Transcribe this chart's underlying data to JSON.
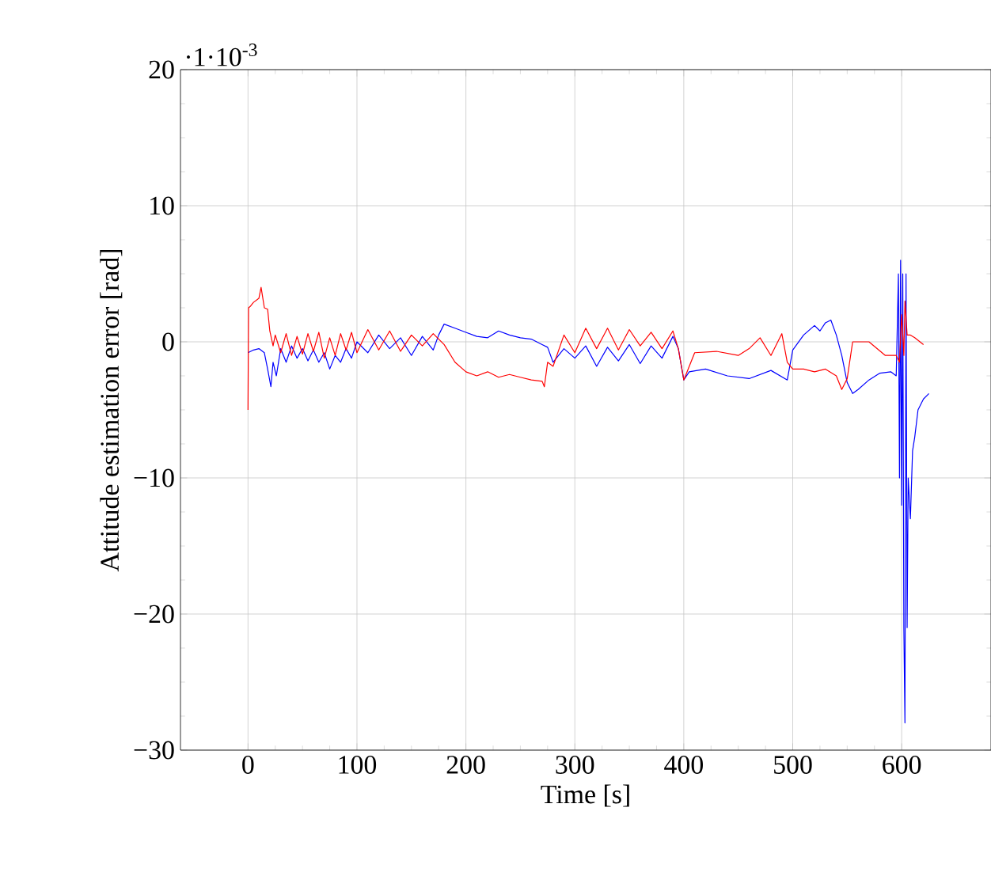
{
  "chart_data": {
    "type": "line",
    "xlabel": "Time [s]",
    "ylabel": "Attitude estimation error [rad]",
    "annotations": [
      "·1·10$^{-3}$"
    ],
    "xlim": [
      -62,
      682
    ],
    "ylim": [
      -30,
      20
    ],
    "xticks": [
      0,
      100,
      200,
      300,
      400,
      500,
      600
    ],
    "yticks": [
      {
        "value": -30,
        "label": "−30"
      },
      {
        "value": -20,
        "label": "−20"
      },
      {
        "value": -10,
        "label": "−10"
      },
      0,
      10,
      20
    ],
    "grid": true,
    "marker": "none",
    "line_style": "solid",
    "series": [
      {
        "color": "#0000ff",
        "x": [
          0,
          5,
          10,
          15,
          18,
          21,
          23,
          26,
          30,
          35,
          40,
          45,
          50,
          55,
          60,
          65,
          70,
          75,
          80,
          85,
          90,
          95,
          100,
          110,
          120,
          130,
          140,
          150,
          160,
          170,
          175,
          180,
          190,
          200,
          210,
          220,
          230,
          240,
          250,
          260,
          270,
          275,
          280,
          290,
          300,
          310,
          320,
          330,
          340,
          350,
          360,
          370,
          380,
          390,
          395,
          400,
          405,
          420,
          440,
          460,
          480,
          495,
          500,
          510,
          520,
          525,
          530,
          535,
          540,
          545,
          550,
          555,
          560,
          570,
          580,
          590,
          595,
          597,
          598,
          599,
          600,
          601,
          602,
          603,
          604,
          605,
          606,
          608,
          610,
          612,
          615,
          620,
          625
        ],
        "values": [
          -0.8,
          -0.6,
          -0.5,
          -0.8,
          -2,
          -3.3,
          -1.5,
          -2.5,
          -0.5,
          -1.5,
          -0.3,
          -1.2,
          -0.5,
          -1.4,
          -0.6,
          -1.5,
          -0.8,
          -2,
          -1,
          -1.5,
          -0.5,
          -1.2,
          0,
          -0.8,
          0.5,
          -0.5,
          0.3,
          -1,
          0.4,
          -0.6,
          0.5,
          1.3,
          1,
          0.7,
          0.4,
          0.3,
          0.8,
          0.5,
          0.3,
          0.2,
          -0.2,
          -0.4,
          -1.5,
          -0.5,
          -1.2,
          -0.3,
          -1.8,
          -0.4,
          -1.4,
          -0.2,
          -1.6,
          -0.3,
          -1.2,
          0.4,
          -0.5,
          -2.8,
          -2.2,
          -2,
          -2.5,
          -2.7,
          -2.1,
          -2.8,
          -0.6,
          0.5,
          1.2,
          0.8,
          1.4,
          1.6,
          0.5,
          -1,
          -3,
          -3.8,
          -3.5,
          -2.8,
          -2.3,
          -2.2,
          -2.5,
          5,
          -10,
          6,
          -12,
          5,
          -21,
          -28,
          5,
          -21,
          -10,
          -13,
          -8,
          -7,
          -5,
          -4.2,
          -3.8
        ]
      },
      {
        "color": "#ff0000",
        "x": [
          0,
          0.5,
          2,
          5,
          10,
          12,
          15,
          18,
          20,
          23,
          25,
          30,
          35,
          40,
          45,
          50,
          55,
          60,
          65,
          70,
          75,
          80,
          85,
          90,
          95,
          100,
          110,
          120,
          130,
          140,
          150,
          160,
          170,
          180,
          190,
          200,
          210,
          220,
          230,
          240,
          250,
          260,
          270,
          272,
          275,
          280,
          290,
          300,
          310,
          320,
          330,
          340,
          350,
          360,
          370,
          380,
          390,
          395,
          400,
          410,
          430,
          450,
          460,
          470,
          480,
          490,
          495,
          500,
          510,
          520,
          530,
          540,
          545,
          550,
          555,
          570,
          585,
          595,
          598,
          600,
          602,
          603,
          605,
          608,
          612,
          620
        ],
        "values": [
          -5,
          2.5,
          2.6,
          2.9,
          3.2,
          4,
          2.5,
          2.4,
          0.8,
          -0.3,
          0.5,
          -0.8,
          0.6,
          -1,
          0.4,
          -0.9,
          0.6,
          -0.7,
          0.7,
          -1.2,
          0.3,
          -1,
          0.6,
          -0.6,
          0.7,
          -0.8,
          0.9,
          -0.6,
          0.8,
          -0.7,
          0.5,
          -0.3,
          0.6,
          -0.2,
          -1.5,
          -2.2,
          -2.5,
          -2.2,
          -2.6,
          -2.4,
          -2.6,
          -2.8,
          -2.9,
          -3.3,
          -1.5,
          -1.8,
          0.5,
          -0.8,
          1,
          -0.5,
          1,
          -0.6,
          0.9,
          -0.3,
          0.7,
          -0.5,
          0.8,
          -0.5,
          -2.8,
          -0.8,
          -0.7,
          -1,
          -0.5,
          0.3,
          -1,
          0.6,
          -1.5,
          -2,
          -2,
          -2.2,
          -2,
          -2.5,
          -3.5,
          -2.7,
          0,
          0,
          -1,
          -1,
          -1.5,
          2,
          -1,
          3,
          0.5,
          0.5,
          0.3,
          -0.2
        ]
      }
    ]
  }
}
